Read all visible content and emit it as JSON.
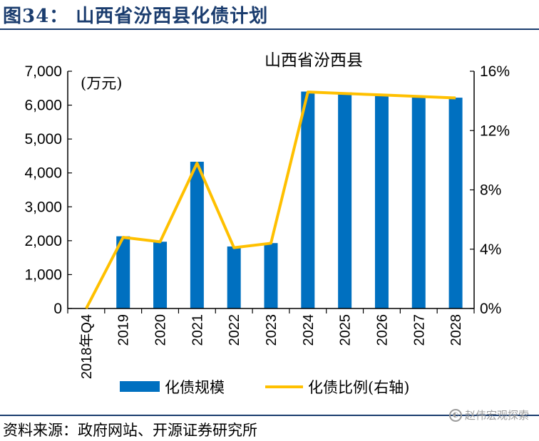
{
  "header": {
    "title": "图34：  山西省汾西县化债计划"
  },
  "footer": {
    "source": "资料来源：政府网站、开源证券研究所",
    "watermark": "赵伟宏观探索"
  },
  "chart_data": {
    "type": "bar",
    "title": "山西省汾西县",
    "unit_label": "(万元)",
    "categories": [
      "2018年Q4",
      "2019",
      "2020",
      "2021",
      "2022",
      "2023",
      "2024",
      "2025",
      "2026",
      "2027",
      "2028"
    ],
    "series": [
      {
        "name": "化债规模",
        "type": "bar",
        "axis": "left",
        "color": "#0070c0",
        "values": [
          0,
          2130,
          1970,
          4330,
          1830,
          1930,
          6400,
          6380,
          6320,
          6280,
          6220
        ]
      },
      {
        "name": "化债比例(右轴)",
        "type": "line",
        "axis": "right",
        "color": "#ffc000",
        "values": [
          0,
          4.8,
          4.5,
          9.8,
          4.1,
          4.4,
          14.6,
          14.5,
          14.4,
          14.3,
          14.2
        ]
      }
    ],
    "ylim_left": [
      0,
      7000
    ],
    "yticks_left": [
      "0",
      "1,000",
      "2,000",
      "3,000",
      "4,000",
      "5,000",
      "6,000",
      "7,000"
    ],
    "ylim_right": [
      0,
      16
    ],
    "yticks_right": [
      "0%",
      "4%",
      "8%",
      "12%",
      "16%"
    ],
    "legend_position": "bottom",
    "grid": false
  }
}
